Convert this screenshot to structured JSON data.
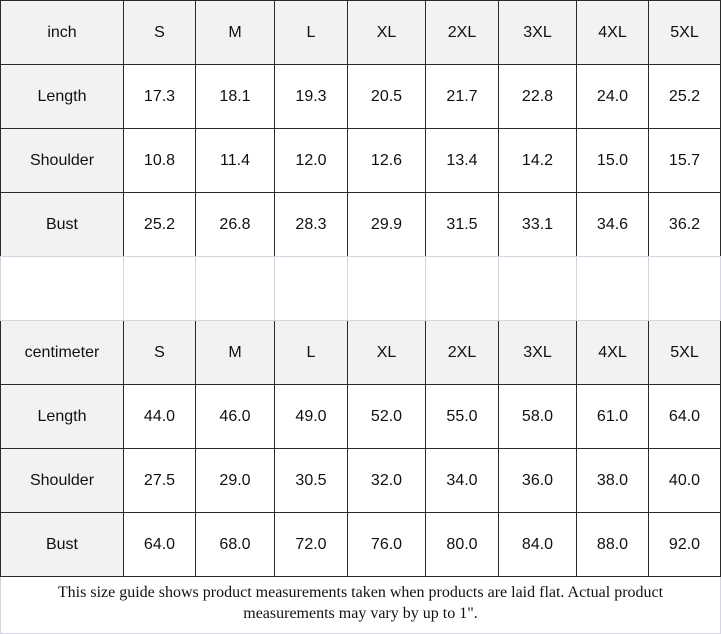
{
  "tables": [
    {
      "header": [
        "inch",
        "S",
        "M",
        "L",
        "XL",
        "2XL",
        "3XL",
        "4XL",
        "5XL"
      ],
      "rows": [
        {
          "label": "Length",
          "values": [
            "17.3",
            "18.1",
            "19.3",
            "20.5",
            "21.7",
            "22.8",
            "24.0",
            "25.2"
          ]
        },
        {
          "label": "Shoulder",
          "values": [
            "10.8",
            "11.4",
            "12.0",
            "12.6",
            "13.4",
            "14.2",
            "15.0",
            "15.7"
          ]
        },
        {
          "label": "Bust",
          "values": [
            "25.2",
            "26.8",
            "28.3",
            "29.9",
            "31.5",
            "33.1",
            "34.6",
            "36.2"
          ]
        }
      ]
    },
    {
      "header": [
        "centimeter",
        "S",
        "M",
        "L",
        "XL",
        "2XL",
        "3XL",
        "4XL",
        "5XL"
      ],
      "rows": [
        {
          "label": "Length",
          "values": [
            "44.0",
            "46.0",
            "49.0",
            "52.0",
            "55.0",
            "58.0",
            "61.0",
            "64.0"
          ]
        },
        {
          "label": "Shoulder",
          "values": [
            "27.5",
            "29.0",
            "30.5",
            "32.0",
            "34.0",
            "36.0",
            "38.0",
            "40.0"
          ]
        },
        {
          "label": "Bust",
          "values": [
            "64.0",
            "68.0",
            "72.0",
            "76.0",
            "80.0",
            "84.0",
            "88.0",
            "92.0"
          ]
        }
      ]
    }
  ],
  "footer": "This size guide shows product measurements taken when products are laid flat. Actual product measurements may vary by up to 1\"."
}
